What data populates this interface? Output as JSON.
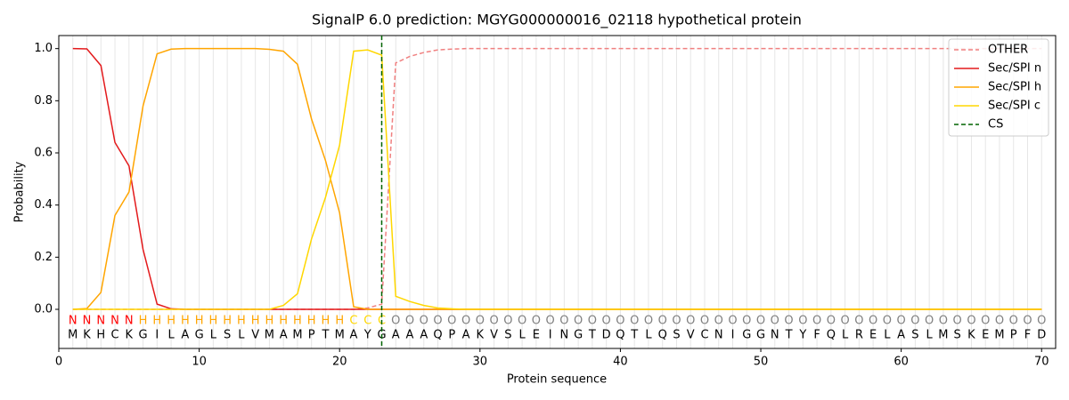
{
  "chart_data": {
    "type": "line",
    "title": "SignalP 6.0 prediction: MGYG000000016_02118 hypothetical protein",
    "x_label": "Protein sequence",
    "y_label": "Probability",
    "x": [
      1,
      2,
      3,
      4,
      5,
      6,
      7,
      8,
      9,
      10,
      11,
      12,
      13,
      14,
      15,
      16,
      17,
      18,
      19,
      20,
      21,
      22,
      23,
      24,
      25,
      26,
      27,
      28,
      29,
      30,
      31,
      32,
      33,
      34,
      35,
      36,
      37,
      38,
      39,
      40,
      41,
      42,
      43,
      44,
      45,
      46,
      47,
      48,
      49,
      50,
      51,
      52,
      53,
      54,
      55,
      56,
      57,
      58,
      59,
      60,
      61,
      62,
      63,
      64,
      65,
      66,
      67,
      68,
      69,
      70
    ],
    "sequence": [
      "M",
      "K",
      "H",
      "C",
      "K",
      "G",
      "I",
      "L",
      "A",
      "G",
      "L",
      "S",
      "L",
      "V",
      "M",
      "A",
      "M",
      "P",
      "T",
      "M",
      "A",
      "Y",
      "G",
      "A",
      "A",
      "A",
      "Q",
      "P",
      "A",
      "K",
      "V",
      "S",
      "L",
      "E",
      "I",
      "N",
      "G",
      "T",
      "D",
      "Q",
      "T",
      "L",
      "Q",
      "S",
      "V",
      "C",
      "N",
      "I",
      "G",
      "G",
      "N",
      "T",
      "Y",
      "F",
      "Q",
      "L",
      "R",
      "E",
      "L",
      "A",
      "S",
      "L",
      "M",
      "S",
      "K",
      "E",
      "M",
      "P",
      "F",
      "D"
    ],
    "labels": [
      "N",
      "N",
      "N",
      "N",
      "N",
      "H",
      "H",
      "H",
      "H",
      "H",
      "H",
      "H",
      "H",
      "H",
      "H",
      "H",
      "H",
      "H",
      "H",
      "H",
      "C",
      "C",
      "C",
      "O",
      "O",
      "O",
      "O",
      "O",
      "O",
      "O",
      "O",
      "O",
      "O",
      "O",
      "O",
      "O",
      "O",
      "O",
      "O",
      "O",
      "O",
      "O",
      "O",
      "O",
      "O",
      "O",
      "O",
      "O",
      "O",
      "O",
      "O",
      "O",
      "O",
      "O",
      "O",
      "O",
      "O",
      "O",
      "O",
      "O",
      "O",
      "O",
      "O",
      "O",
      "O",
      "O",
      "O",
      "O",
      "O",
      "O"
    ],
    "label_colors": {
      "N": "#ff0000",
      "H": "#ffa500",
      "C": "#ffd700",
      "O": "#808080"
    },
    "series": [
      {
        "name": "OTHER",
        "color": "#f08080",
        "dashed": true,
        "values": [
          0,
          0,
          0,
          0,
          0,
          0,
          0,
          0,
          0,
          0,
          0,
          0,
          0,
          0,
          0,
          0,
          0,
          0,
          0,
          0,
          0,
          0.005,
          0.02,
          0.945,
          0.97,
          0.985,
          0.995,
          0.998,
          1,
          1,
          1,
          1,
          1,
          1,
          1,
          1,
          1,
          1,
          1,
          1,
          1,
          1,
          1,
          1,
          1,
          1,
          1,
          1,
          1,
          1,
          1,
          1,
          1,
          1,
          1,
          1,
          1,
          1,
          1,
          1,
          1,
          1,
          1,
          1,
          1,
          1,
          1,
          1,
          1,
          1
        ]
      },
      {
        "name": "Sec/SPI n",
        "color": "#e31a1c",
        "values": [
          1,
          0.999,
          0.935,
          0.64,
          0.55,
          0.23,
          0.02,
          0.002,
          0,
          0,
          0,
          0,
          0,
          0,
          0,
          0,
          0,
          0,
          0,
          0,
          0,
          0,
          0,
          0,
          0,
          0,
          0,
          0,
          0,
          0,
          0,
          0,
          0,
          0,
          0,
          0,
          0,
          0,
          0,
          0,
          0,
          0,
          0,
          0,
          0,
          0,
          0,
          0,
          0,
          0,
          0,
          0,
          0,
          0,
          0,
          0,
          0,
          0,
          0,
          0,
          0,
          0,
          0,
          0,
          0,
          0,
          0,
          0,
          0,
          0
        ]
      },
      {
        "name": "Sec/SPI h",
        "color": "#ffa500",
        "values": [
          0,
          0.003,
          0.065,
          0.36,
          0.45,
          0.78,
          0.98,
          0.998,
          1,
          1,
          1,
          1,
          1,
          1,
          0.997,
          0.99,
          0.94,
          0.73,
          0.57,
          0.37,
          0.01,
          0,
          0,
          0,
          0,
          0,
          0,
          0,
          0,
          0,
          0,
          0,
          0,
          0,
          0,
          0,
          0,
          0,
          0,
          0,
          0,
          0,
          0,
          0,
          0,
          0,
          0,
          0,
          0,
          0,
          0,
          0,
          0,
          0,
          0,
          0,
          0,
          0,
          0,
          0,
          0,
          0,
          0,
          0,
          0,
          0,
          0,
          0,
          0,
          0
        ]
      },
      {
        "name": "Sec/SPI c",
        "color": "#ffd700",
        "values": [
          0,
          0,
          0,
          0,
          0,
          0,
          0,
          0,
          0,
          0,
          0,
          0,
          0,
          0,
          0,
          0.015,
          0.06,
          0.27,
          0.43,
          0.63,
          0.99,
          0.995,
          0.975,
          0.05,
          0.03,
          0.015,
          0.005,
          0.002,
          0,
          0,
          0,
          0,
          0,
          0,
          0,
          0,
          0,
          0,
          0,
          0,
          0,
          0,
          0,
          0,
          0,
          0,
          0,
          0,
          0,
          0,
          0,
          0,
          0,
          0,
          0,
          0,
          0,
          0,
          0,
          0,
          0,
          0,
          0,
          0,
          0,
          0,
          0,
          0,
          0,
          0
        ]
      }
    ],
    "cs": {
      "name": "CS",
      "x": 23,
      "color": "#006400"
    },
    "xlim": [
      0,
      71
    ],
    "ylim": [
      -0.15,
      1.05
    ],
    "xticks": [
      0,
      10,
      20,
      30,
      40,
      50,
      60,
      70
    ],
    "yticks": [
      {
        "value": 0,
        "label": "0.0"
      },
      {
        "value": 0.2,
        "label": "0.2"
      },
      {
        "value": 0.4,
        "label": "0.4"
      },
      {
        "value": 0.6,
        "label": "0.6"
      },
      {
        "value": 0.8,
        "label": "0.8"
      },
      {
        "value": 1,
        "label": "1.0"
      }
    ],
    "grid": true,
    "legend": "upper right"
  }
}
